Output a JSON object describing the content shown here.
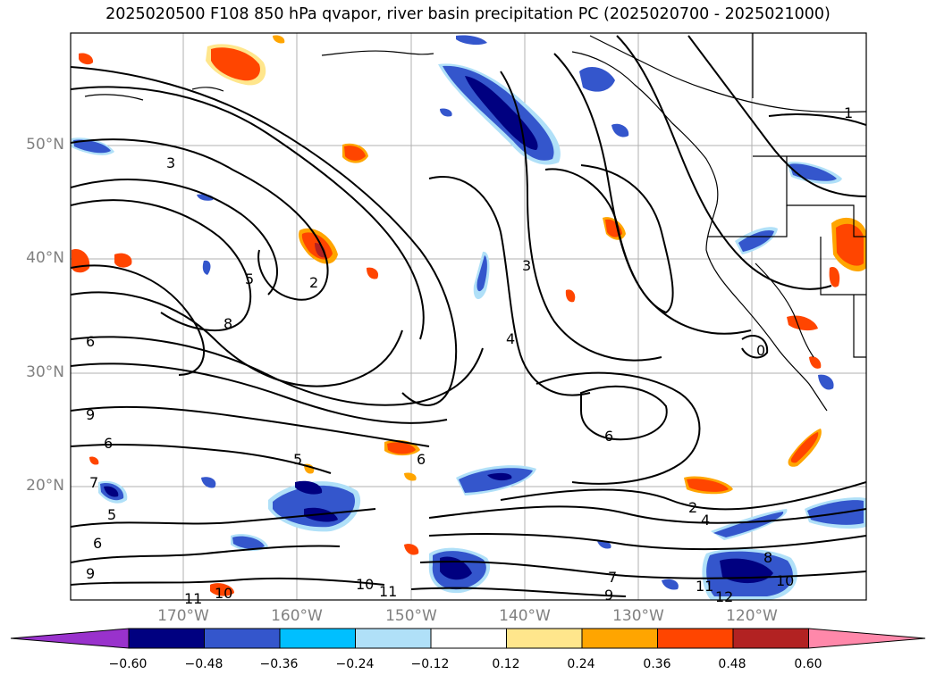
{
  "title": "2025020500 F108 850 hPa qvapor, river basin precipitation PC (2025020700 - 2025021000)",
  "lat_labels": [
    "50°N",
    "40°N",
    "30°N",
    "20°N"
  ],
  "lon_labels": [
    "170°W",
    "160°W",
    "150°W",
    "140°W",
    "130°W",
    "120°W"
  ],
  "colorbar": {
    "ticks": [
      "−0.60",
      "−0.48",
      "−0.36",
      "−0.24",
      "−0.12",
      "0.12",
      "0.24",
      "0.36",
      "0.48",
      "0.60"
    ],
    "colors": [
      "#9932cc",
      "#000080",
      "#3456cc",
      "#00bfff",
      "#b0e0f8",
      "#ffffff",
      "#ffe68c",
      "#ffa500",
      "#ff4500",
      "#b22222",
      "#ff88aa"
    ]
  },
  "contour_labels": [
    {
      "text": "1"
    },
    {
      "text": "3"
    },
    {
      "text": "5"
    },
    {
      "text": "2"
    },
    {
      "text": "8"
    },
    {
      "text": "6"
    },
    {
      "text": "3"
    },
    {
      "text": "4"
    },
    {
      "text": "9"
    },
    {
      "text": "6"
    },
    {
      "text": "7"
    },
    {
      "text": "5"
    },
    {
      "text": "6"
    },
    {
      "text": "9"
    },
    {
      "text": "10"
    },
    {
      "text": "11"
    },
    {
      "text": "10"
    },
    {
      "text": "11"
    },
    {
      "text": "6"
    },
    {
      "text": "2"
    },
    {
      "text": "4"
    },
    {
      "text": "7"
    },
    {
      "text": "9"
    },
    {
      "text": "8"
    },
    {
      "text": "10"
    },
    {
      "text": "11"
    },
    {
      "text": "12"
    },
    {
      "text": "0"
    },
    {
      "text": "6"
    },
    {
      "text": "5"
    }
  ]
}
